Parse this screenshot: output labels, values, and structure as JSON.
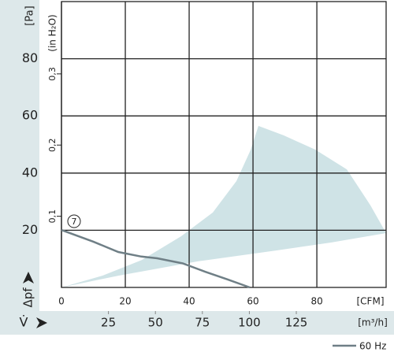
{
  "chart_data": {
    "type": "line",
    "y_label": "[Pa]",
    "y2_label": "(in H₂O)",
    "y_symbol": "Δpf",
    "x_label": "[CFM]",
    "x2_label": "[m³/h]",
    "x2_symbol": "V̇",
    "xlim": [
      0,
      101.7
    ],
    "xticks": [
      0,
      20,
      40,
      60,
      80
    ],
    "x2lim": [
      0,
      172.8
    ],
    "x2ticks": [
      25,
      50,
      75,
      100,
      125
    ],
    "ylim": [
      0,
      100
    ],
    "yticks": [
      20,
      40,
      60,
      80
    ],
    "y2lim": [
      0,
      0.4016
    ],
    "y2ticks": [
      {
        "value": 0.1,
        "label": "0,1"
      },
      {
        "value": 0.2,
        "label": "0,2"
      },
      {
        "value": 0.3,
        "label": "0,3"
      }
    ],
    "grid": true,
    "region": {
      "color": "#cfe3e6",
      "x": [
        0,
        17.8,
        42.5,
        67.2,
        84.4,
        101.7,
        96.8,
        89.4,
        79.5,
        69.6,
        61.7,
        59.3,
        54.8,
        47.4,
        37.5,
        25.2,
        12.8
      ],
      "y": [
        0,
        4.1,
        9.1,
        12.9,
        15.7,
        19.0,
        28.7,
        41.3,
        48.2,
        53.2,
        56.5,
        48.2,
        37.2,
        26.2,
        17.9,
        9.6,
        4.1
      ]
    },
    "series": [
      {
        "name": "60 Hz",
        "color": "#6f7f86",
        "label": "7",
        "x": [
          0,
          10,
          17.8,
          25,
          30,
          38,
          45,
          52,
          59
        ],
        "values": [
          20.1,
          16,
          12.4,
          10.8,
          10.2,
          8.4,
          5.5,
          2.8,
          0
        ]
      }
    ]
  }
}
